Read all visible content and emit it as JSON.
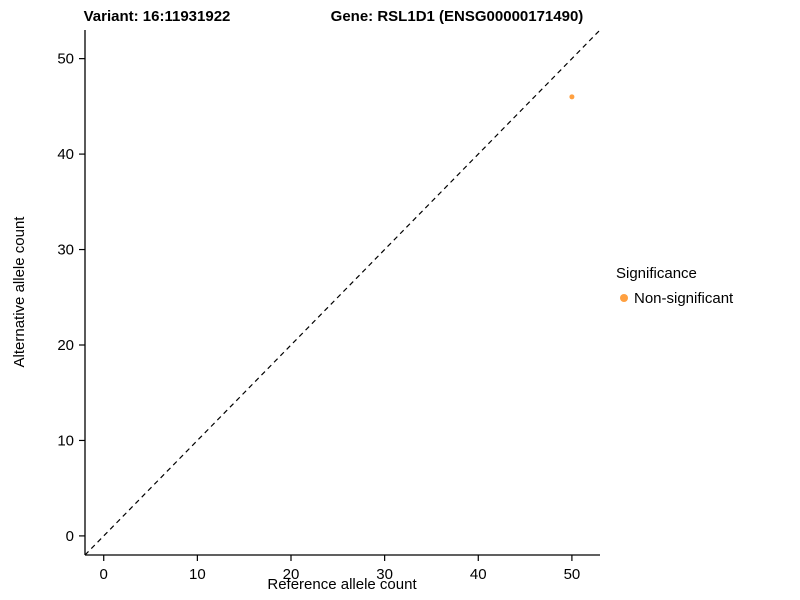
{
  "chart_data": {
    "type": "scatter",
    "title_left": "Variant: 16:11931922",
    "title_right": "Gene: RSL1D1 (ENSG00000171490)",
    "xlabel": "Reference allele count",
    "ylabel": "Alternative allele count",
    "xlim": [
      -2,
      53
    ],
    "ylim": [
      -2,
      53
    ],
    "xticks": [
      0,
      10,
      20,
      30,
      40,
      50
    ],
    "yticks": [
      0,
      10,
      20,
      30,
      40,
      50
    ],
    "grid": false,
    "axis_color": "#000000",
    "identity_line": {
      "style": "dashed",
      "from": [
        -2,
        -2
      ],
      "to": [
        53,
        53
      ],
      "color": "#000000"
    },
    "points": [
      {
        "x": 50,
        "y": 46,
        "series": "Non-significant"
      }
    ],
    "point_radius": 2.5,
    "legend": {
      "position": "right",
      "title": "Significance",
      "items": [
        {
          "label": "Non-significant",
          "color": "#FFA040"
        }
      ]
    }
  }
}
